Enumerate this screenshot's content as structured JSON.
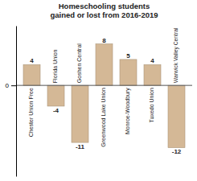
{
  "chart_data": {
    "type": "bar",
    "title": "Homeschooling students\ngained or lost from 2016-2019",
    "categories": [
      "Chester Union Free",
      "Florida Union",
      "Goshen Central",
      "Greenwood Lake Union",
      "Monroe-Woodbury",
      "Tuxedo Union",
      "Warwick Valley Central"
    ],
    "values": [
      4,
      -4,
      -11,
      8,
      5,
      4,
      -12
    ],
    "color": "#D4B896",
    "ylim": [
      -17.5,
      11.5
    ],
    "yticks": [
      0
    ],
    "grid": false,
    "data_labels": true
  }
}
